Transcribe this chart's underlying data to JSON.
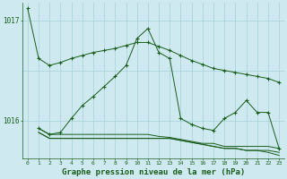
{
  "background_color": "#ceeaf0",
  "grid_color": "#a8d0d8",
  "line_color": "#1a5c1a",
  "title": "Graphe pression niveau de la mer (hPa)",
  "xlim": [
    -0.5,
    23.5
  ],
  "ylim": [
    1015.62,
    1017.18
  ],
  "yticks": [
    1016,
    1017
  ],
  "xticks": [
    0,
    1,
    2,
    3,
    4,
    5,
    6,
    7,
    8,
    9,
    10,
    11,
    12,
    13,
    14,
    15,
    16,
    17,
    18,
    19,
    20,
    21,
    22,
    23
  ],
  "line1_x": [
    0,
    1,
    2,
    3,
    4,
    5,
    6,
    7,
    8,
    9,
    10,
    11,
    12,
    13,
    14,
    15,
    16,
    17,
    18,
    19,
    20,
    21,
    22,
    23
  ],
  "line1_y": [
    1017.12,
    1016.62,
    1016.55,
    1016.58,
    1016.62,
    1016.65,
    1016.68,
    1016.7,
    1016.72,
    1016.75,
    1016.78,
    1016.78,
    1016.74,
    1016.7,
    1016.65,
    1016.6,
    1016.56,
    1016.52,
    1016.5,
    1016.48,
    1016.46,
    1016.44,
    1016.42,
    1016.38
  ],
  "line2_x": [
    1,
    2,
    3,
    4,
    5,
    6,
    7,
    8,
    9,
    10,
    11,
    12,
    13,
    14,
    15,
    16,
    17,
    18,
    19,
    20,
    21,
    22,
    23
  ],
  "line2_y": [
    1015.92,
    1015.86,
    1015.86,
    1015.86,
    1015.86,
    1015.86,
    1015.86,
    1015.86,
    1015.86,
    1015.86,
    1015.86,
    1015.84,
    1015.83,
    1015.81,
    1015.79,
    1015.77,
    1015.77,
    1015.74,
    1015.74,
    1015.74,
    1015.74,
    1015.74,
    1015.72
  ],
  "line3_x": [
    1,
    2,
    3,
    4,
    5,
    6,
    7,
    8,
    9,
    10,
    11,
    12,
    13,
    14,
    15,
    16,
    17,
    18,
    19,
    20,
    21,
    22,
    23
  ],
  "line3_y": [
    1015.88,
    1015.82,
    1015.82,
    1015.82,
    1015.82,
    1015.82,
    1015.82,
    1015.82,
    1015.82,
    1015.82,
    1015.82,
    1015.82,
    1015.82,
    1015.8,
    1015.78,
    1015.76,
    1015.74,
    1015.72,
    1015.72,
    1015.7,
    1015.7,
    1015.7,
    1015.68
  ],
  "line4_x": [
    1,
    2,
    3,
    4,
    5,
    6,
    7,
    8,
    9,
    10,
    11,
    12,
    13,
    14,
    15,
    16,
    17,
    18,
    19,
    20,
    21,
    22,
    23
  ],
  "line4_y": [
    1015.92,
    1015.86,
    1015.88,
    1016.02,
    1016.15,
    1016.24,
    1016.34,
    1016.44,
    1016.55,
    1016.82,
    1016.92,
    1016.68,
    1016.62,
    1016.02,
    1015.96,
    1015.92,
    1015.9,
    1016.02,
    1016.08,
    1016.2,
    1016.08,
    1016.08,
    1015.72
  ],
  "line5_x": [
    1,
    2,
    3,
    4,
    5,
    6,
    7,
    8,
    9,
    10,
    11,
    12,
    13,
    14,
    15,
    16,
    17,
    18,
    19,
    20,
    21,
    22,
    23
  ],
  "line5_y": [
    1015.88,
    1015.82,
    1015.82,
    1015.82,
    1015.82,
    1015.82,
    1015.82,
    1015.82,
    1015.82,
    1015.82,
    1015.82,
    1015.82,
    1015.82,
    1015.8,
    1015.78,
    1015.76,
    1015.74,
    1015.72,
    1015.72,
    1015.7,
    1015.7,
    1015.68,
    1015.65
  ]
}
